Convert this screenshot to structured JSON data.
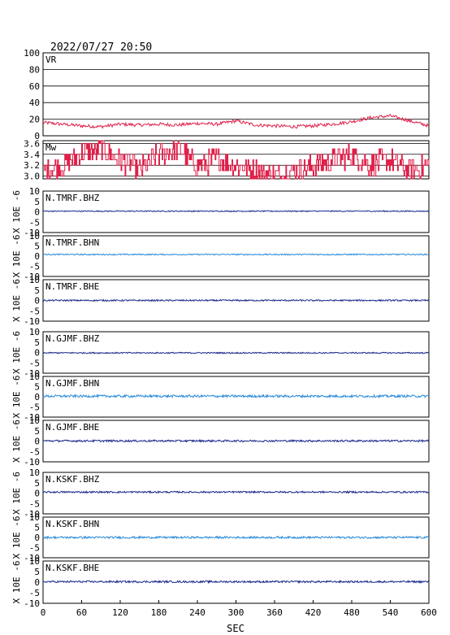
{
  "header": {
    "timestamp": "2022/07/27 20:50"
  },
  "colors": {
    "vr": "#e0204a",
    "mw": "#e0204a",
    "dark_trace": "#1a2a8c",
    "light_trace": "#2a8ad8",
    "frame": "#000000",
    "grid": "#000000"
  },
  "chart_data": [
    {
      "type": "line",
      "name": "VR",
      "label": "VR",
      "xlim": [
        0,
        600
      ],
      "ylim": [
        0,
        100
      ],
      "yticks": [
        "0",
        "20",
        "40",
        "60",
        "80",
        "100"
      ],
      "grid": true,
      "x": [
        0,
        30,
        60,
        90,
        120,
        150,
        180,
        210,
        240,
        270,
        300,
        330,
        360,
        390,
        420,
        450,
        480,
        510,
        540,
        570,
        600
      ],
      "values": [
        16,
        14,
        12,
        11,
        14,
        13,
        14,
        13,
        15,
        14,
        18,
        13,
        12,
        11,
        12,
        14,
        17,
        22,
        24,
        18,
        12
      ]
    },
    {
      "type": "line",
      "name": "Mw",
      "label": "Mw",
      "xlim": [
        0,
        600
      ],
      "ylim": [
        2.95,
        3.65
      ],
      "yticks": [
        "3.0",
        "3.2",
        "3.4",
        "3.6"
      ],
      "grid": true,
      "x": [
        0,
        30,
        60,
        90,
        120,
        150,
        180,
        210,
        240,
        270,
        300,
        330,
        360,
        390,
        420,
        450,
        480,
        510,
        540,
        570,
        600
      ],
      "values": [
        3.1,
        3.2,
        3.4,
        3.5,
        3.3,
        3.1,
        3.4,
        3.5,
        3.2,
        3.3,
        3.2,
        3.1,
        3.0,
        3.1,
        3.2,
        3.3,
        3.4,
        3.2,
        3.3,
        3.1,
        3.2
      ]
    },
    {
      "type": "line",
      "name": "N.TMRF.BHZ",
      "label": "N.TMRF.BHZ",
      "xlim": [
        0,
        600
      ],
      "ylim": [
        -10,
        10
      ],
      "yticks": [
        "-10",
        "-5",
        "0",
        "5",
        "10"
      ],
      "ylabel": "X 10E -6",
      "baseline": 0.3,
      "noise": 0.25,
      "tone": "dark"
    },
    {
      "type": "line",
      "name": "N.TMRF.BHN",
      "label": "N.TMRF.BHN",
      "xlim": [
        0,
        600
      ],
      "ylim": [
        -10,
        10
      ],
      "yticks": [
        "-10",
        "-5",
        "0",
        "5",
        "10"
      ],
      "ylabel": "X 10E -6",
      "baseline": 0.8,
      "noise": 0.3,
      "tone": "light"
    },
    {
      "type": "line",
      "name": "N.TMRF.BHE",
      "label": "N.TMRF.BHE",
      "xlim": [
        0,
        600
      ],
      "ylim": [
        -10,
        10
      ],
      "yticks": [
        "-10",
        "-5",
        "0",
        "5",
        "10"
      ],
      "ylabel": "X 10E -6",
      "baseline": 0.0,
      "noise": 0.35,
      "tone": "dark"
    },
    {
      "type": "line",
      "name": "N.GJMF.BHZ",
      "label": "N.GJMF.BHZ",
      "xlim": [
        0,
        600
      ],
      "ylim": [
        -10,
        10
      ],
      "yticks": [
        "-10",
        "-5",
        "0",
        "5",
        "10"
      ],
      "ylabel": "X 10E -6",
      "baseline": -0.2,
      "noise": 0.3,
      "tone": "dark"
    },
    {
      "type": "line",
      "name": "N.GJMF.BHN",
      "label": "N.GJMF.BHN",
      "xlim": [
        0,
        600
      ],
      "ylim": [
        -10,
        10
      ],
      "yticks": [
        "-10",
        "-5",
        "0",
        "5",
        "10"
      ],
      "ylabel": "X 10E -6",
      "baseline": 0.3,
      "noise": 0.6,
      "tone": "light"
    },
    {
      "type": "line",
      "name": "N.GJMF.BHE",
      "label": "N.GJMF.BHE",
      "xlim": [
        0,
        600
      ],
      "ylim": [
        -10,
        10
      ],
      "yticks": [
        "-10",
        "-5",
        "0",
        "5",
        "10"
      ],
      "ylabel": "X 10E -6",
      "baseline": 0.1,
      "noise": 0.45,
      "tone": "dark"
    },
    {
      "type": "line",
      "name": "N.KSKF.BHZ",
      "label": "N.KSKF.BHZ",
      "xlim": [
        0,
        600
      ],
      "ylim": [
        -10,
        10
      ],
      "yticks": [
        "-10",
        "-5",
        "0",
        "5",
        "10"
      ],
      "ylabel": "X 10E -6",
      "baseline": 0.5,
      "noise": 0.4,
      "tone": "dark"
    },
    {
      "type": "line",
      "name": "N.KSKF.BHN",
      "label": "N.KSKF.BHN",
      "xlim": [
        0,
        600
      ],
      "ylim": [
        -10,
        10
      ],
      "yticks": [
        "-10",
        "-5",
        "0",
        "5",
        "10"
      ],
      "ylabel": "X 10E -6",
      "baseline": 0.0,
      "noise": 0.5,
      "tone": "light"
    },
    {
      "type": "line",
      "name": "N.KSKF.BHE",
      "label": "N.KSKF.BHE",
      "xlim": [
        0,
        600
      ],
      "ylim": [
        -10,
        10
      ],
      "yticks": [
        "-10",
        "-5",
        "0",
        "5",
        "10"
      ],
      "ylabel": "X 10E -6",
      "baseline": 0.2,
      "noise": 0.45,
      "tone": "dark"
    }
  ],
  "x_axis": {
    "label": "SEC",
    "ticks": [
      "0",
      "60",
      "120",
      "180",
      "240",
      "300",
      "360",
      "420",
      "480",
      "540",
      "600"
    ]
  }
}
